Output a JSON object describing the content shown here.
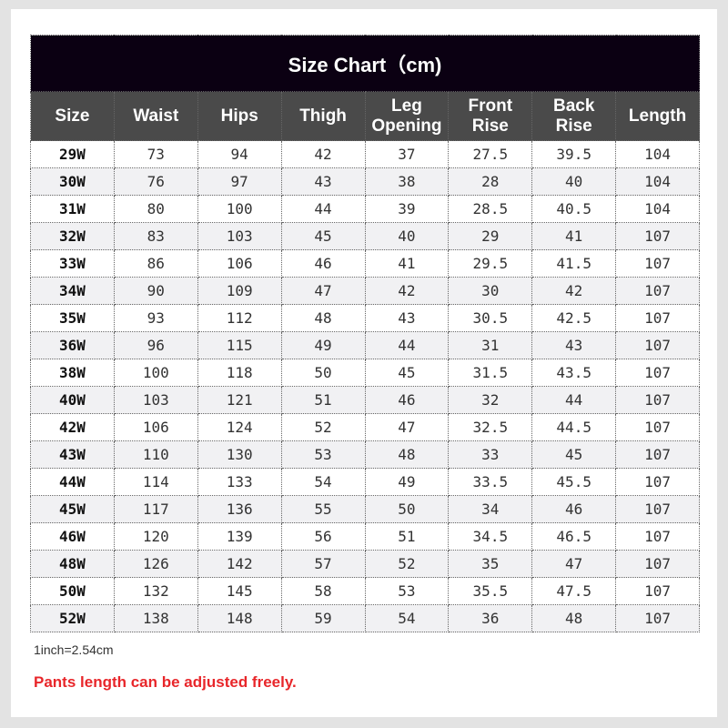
{
  "title": "Size Chart（cm)",
  "columns": [
    "Size",
    "Waist",
    "Hips",
    "Thigh",
    "Leg Opening",
    "Front Rise",
    "Back Rise",
    "Length"
  ],
  "rows": [
    [
      "29W",
      "73",
      "94",
      "42",
      "37",
      "27.5",
      "39.5",
      "104"
    ],
    [
      "30W",
      "76",
      "97",
      "43",
      "38",
      "28",
      "40",
      "104"
    ],
    [
      "31W",
      "80",
      "100",
      "44",
      "39",
      "28.5",
      "40.5",
      "104"
    ],
    [
      "32W",
      "83",
      "103",
      "45",
      "40",
      "29",
      "41",
      "107"
    ],
    [
      "33W",
      "86",
      "106",
      "46",
      "41",
      "29.5",
      "41.5",
      "107"
    ],
    [
      "34W",
      "90",
      "109",
      "47",
      "42",
      "30",
      "42",
      "107"
    ],
    [
      "35W",
      "93",
      "112",
      "48",
      "43",
      "30.5",
      "42.5",
      "107"
    ],
    [
      "36W",
      "96",
      "115",
      "49",
      "44",
      "31",
      "43",
      "107"
    ],
    [
      "38W",
      "100",
      "118",
      "50",
      "45",
      "31.5",
      "43.5",
      "107"
    ],
    [
      "40W",
      "103",
      "121",
      "51",
      "46",
      "32",
      "44",
      "107"
    ],
    [
      "42W",
      "106",
      "124",
      "52",
      "47",
      "32.5",
      "44.5",
      "107"
    ],
    [
      "43W",
      "110",
      "130",
      "53",
      "48",
      "33",
      "45",
      "107"
    ],
    [
      "44W",
      "114",
      "133",
      "54",
      "49",
      "33.5",
      "45.5",
      "107"
    ],
    [
      "45W",
      "117",
      "136",
      "55",
      "50",
      "34",
      "46",
      "107"
    ],
    [
      "46W",
      "120",
      "139",
      "56",
      "51",
      "34.5",
      "46.5",
      "107"
    ],
    [
      "48W",
      "126",
      "142",
      "57",
      "52",
      "35",
      "47",
      "107"
    ],
    [
      "50W",
      "132",
      "145",
      "58",
      "53",
      "35.5",
      "47.5",
      "107"
    ],
    [
      "52W",
      "138",
      "148",
      "59",
      "54",
      "36",
      "48",
      "107"
    ]
  ],
  "note": "1inch=2.54cm",
  "warning": "Pants length can be adjusted freely.",
  "colors": {
    "title_bg": "#0b0012",
    "header_bg": "#4a4a4a",
    "warning": "#e8262a"
  }
}
